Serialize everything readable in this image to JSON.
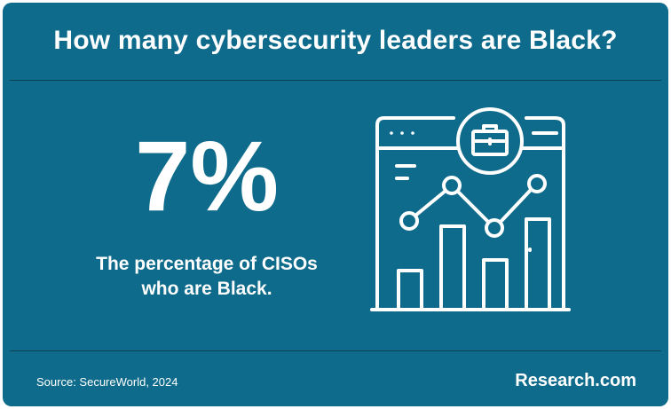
{
  "title": "How many cybersecurity leaders are Black?",
  "stat": {
    "value": "7%",
    "caption_line1": "The percentage of CISOs",
    "caption_line2": "who are Black."
  },
  "footer": {
    "source": "Source: SecureWorld, 2024",
    "brand": "Research.com"
  },
  "colors": {
    "background": "#0e6b8b",
    "text": "#ffffff",
    "divider": "#0a3f52"
  },
  "illustration": {
    "icons": [
      "browser-window-icon",
      "briefcase-icon",
      "bar-chart-icon",
      "line-chart-icon"
    ]
  }
}
